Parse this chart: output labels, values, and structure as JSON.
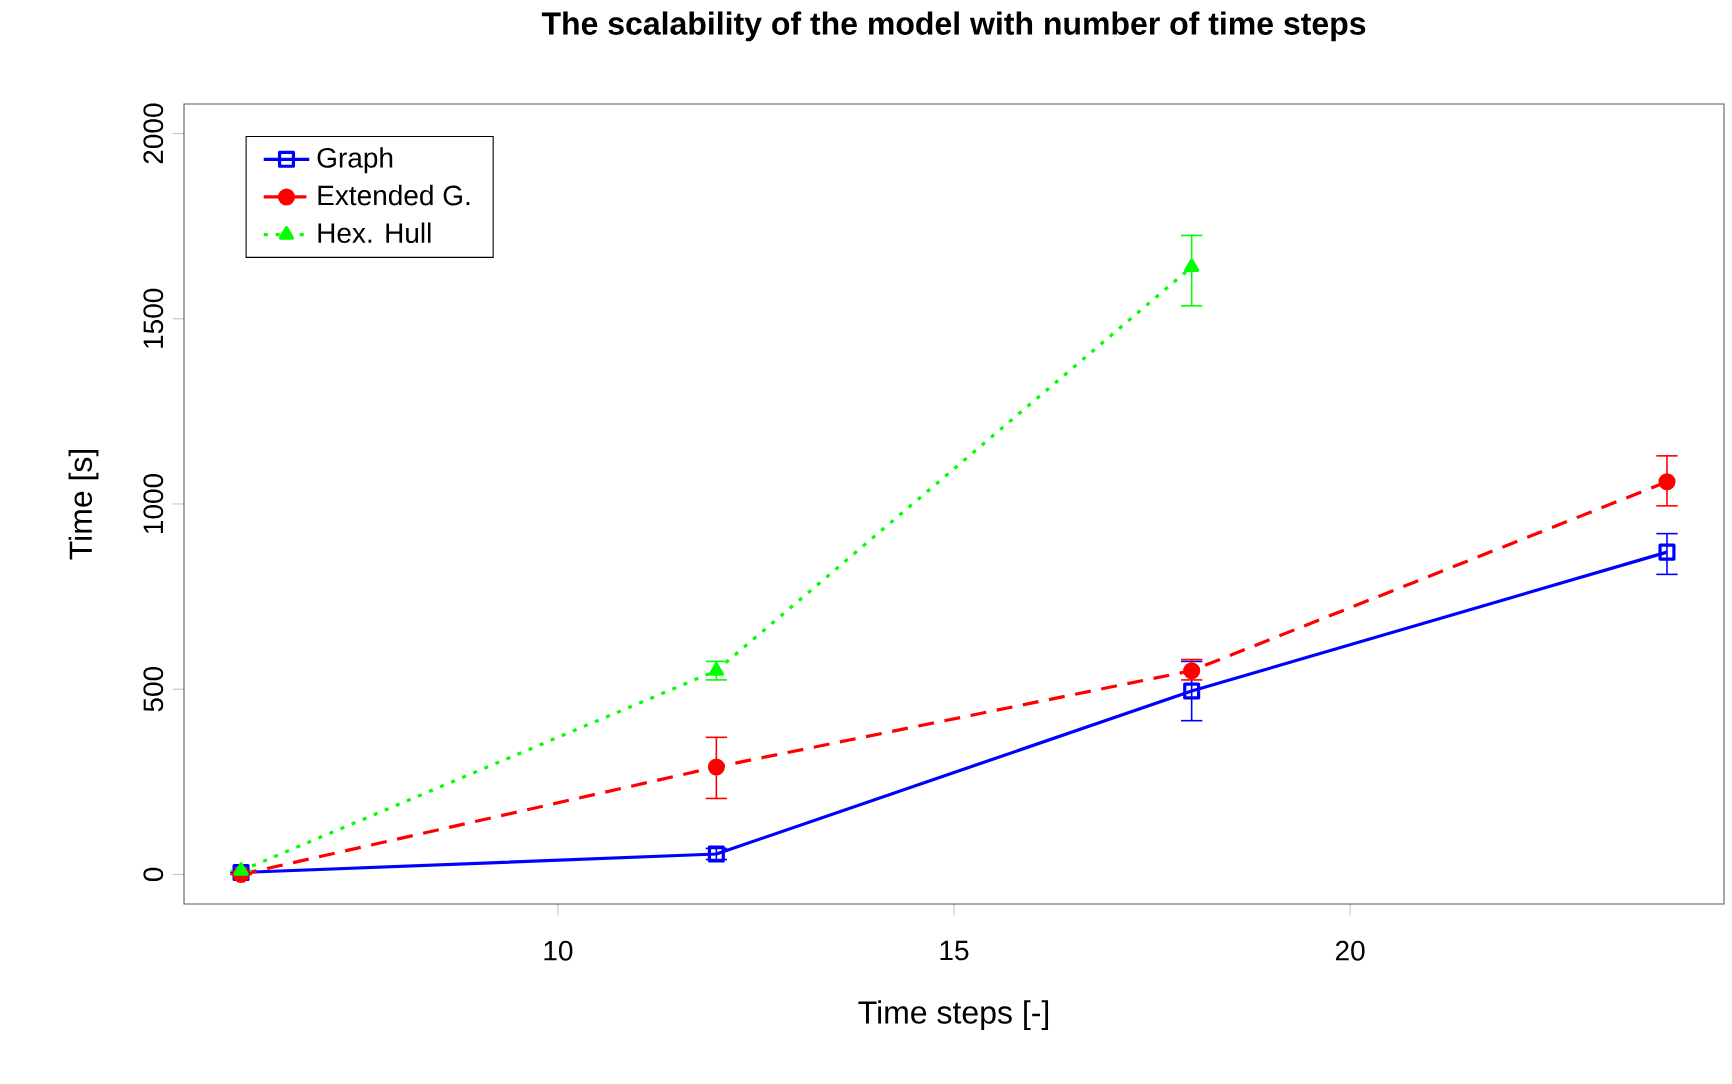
{
  "chart_data": {
    "type": "line",
    "title": "The scalability of the model with number of time steps",
    "xlabel": "Time steps [-]",
    "ylabel": "Time [s]",
    "x": [
      6,
      12,
      18,
      24
    ],
    "series": [
      {
        "name": "Graph",
        "color": "#0000ff",
        "marker": "square",
        "line_style": "solid",
        "values": [
          5,
          55,
          495,
          870
        ],
        "errors": [
          null,
          15,
          [
            415,
            575
          ],
          [
            810,
            920
          ]
        ]
      },
      {
        "name": "Extended G.",
        "color": "#ff0000",
        "marker": "circle",
        "line_style": "dashed",
        "values": [
          0,
          290,
          550,
          1060
        ],
        "errors": [
          null,
          [
            205,
            370
          ],
          [
            525,
            580
          ],
          [
            995,
            1130
          ]
        ]
      },
      {
        "name": "Hex. Hull",
        "color": "#00ff00",
        "marker": "triangle",
        "line_style": "dotted",
        "x": [
          6,
          12,
          18
        ],
        "values": [
          10,
          550,
          1640
        ],
        "errors": [
          null,
          [
            525,
            575
          ],
          [
            1535,
            1725
          ]
        ]
      }
    ],
    "xlim": [
      5.28,
      24.72
    ],
    "ylim": [
      -80,
      2080
    ],
    "xticks": [
      10,
      15,
      20
    ],
    "yticks": [
      0,
      500,
      1000,
      1500,
      2000
    ],
    "grid": false,
    "legend": "top left"
  }
}
